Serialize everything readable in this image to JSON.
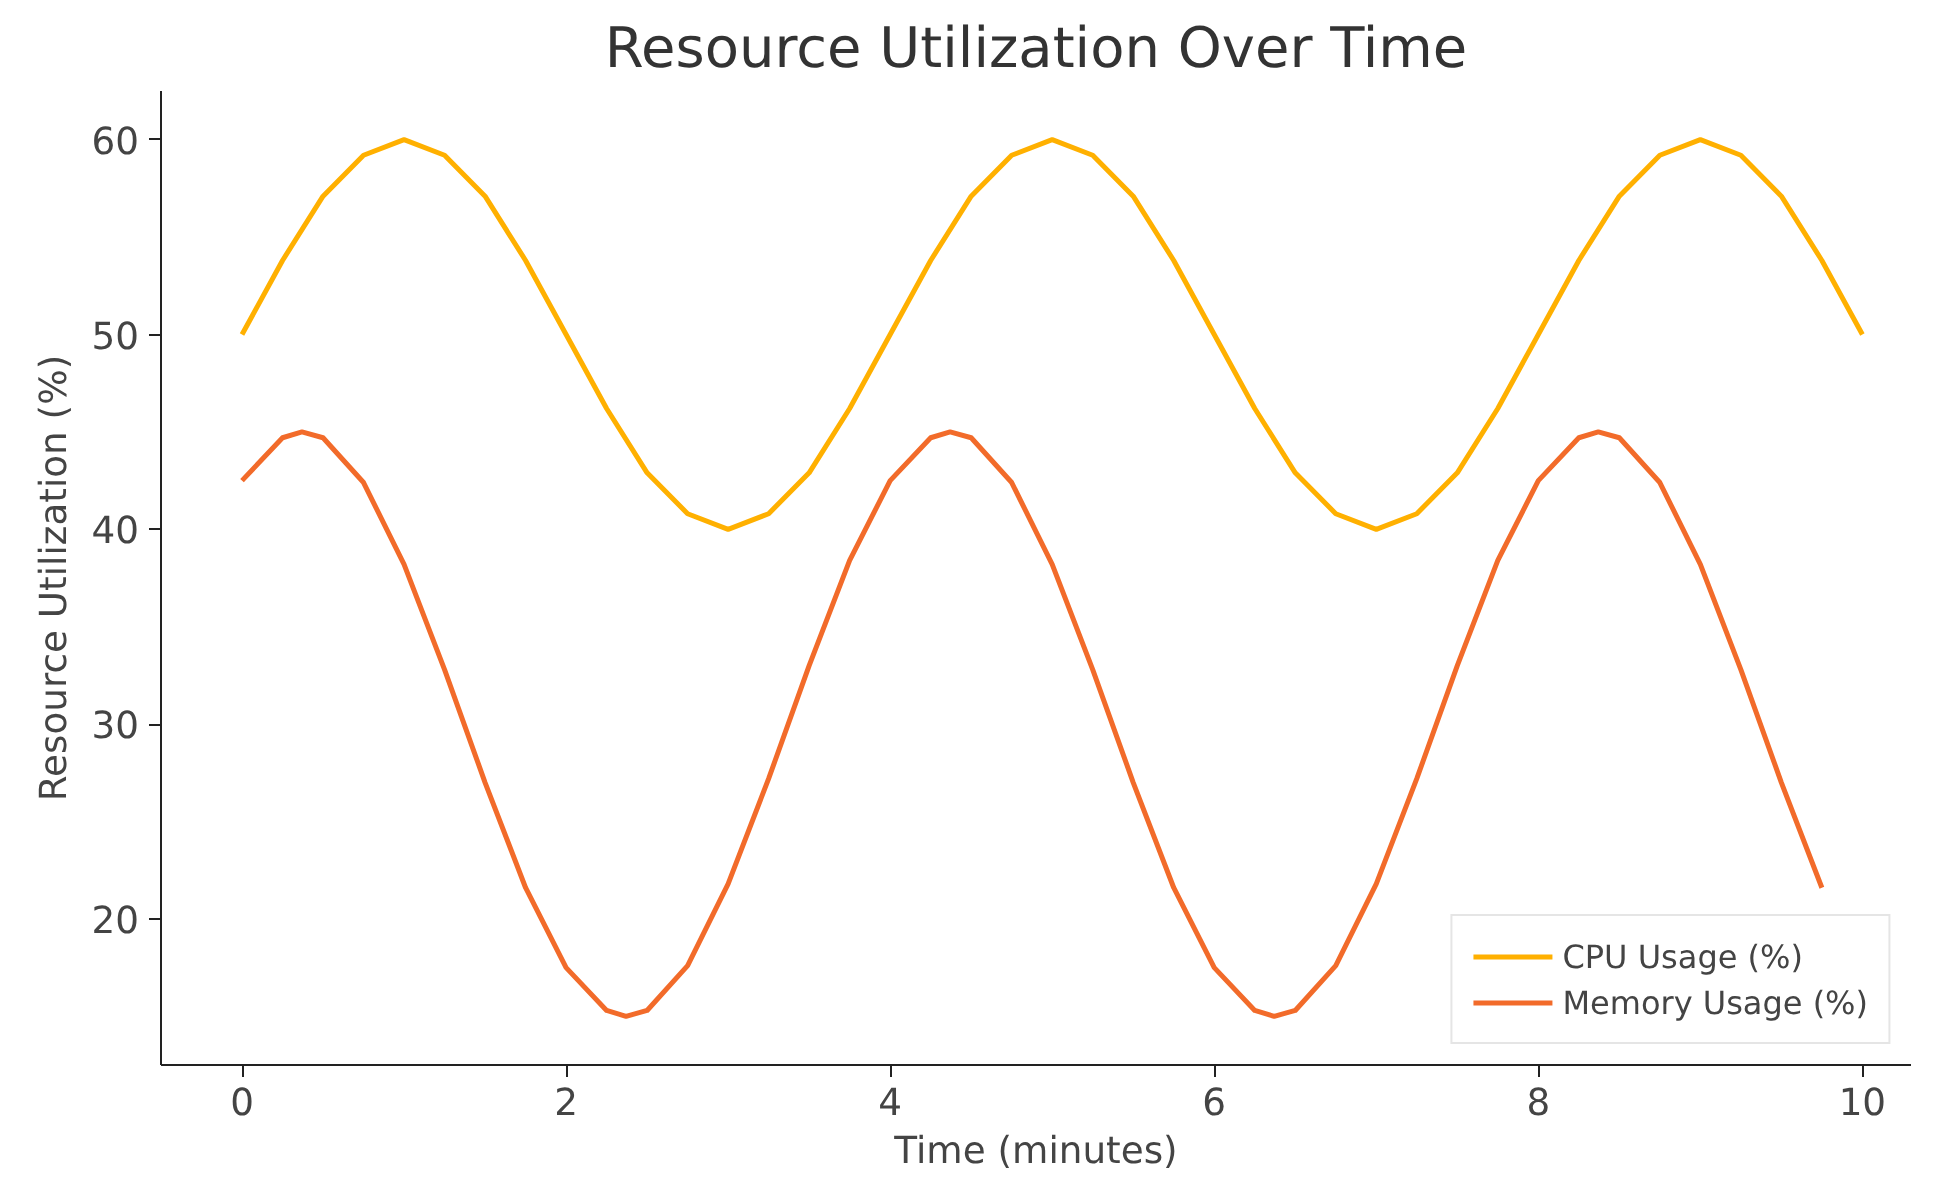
{
  "chart_data": {
    "type": "line",
    "title": "Resource Utilization Over Time",
    "xlabel": "Time (minutes)",
    "ylabel": "Resource Utilization (%)",
    "xlim": [
      -0.5,
      10.3
    ],
    "ylim": [
      12.5,
      62.5
    ],
    "xticks": [
      0,
      2,
      4,
      6,
      8,
      10
    ],
    "yticks": [
      20,
      30,
      40,
      50,
      60
    ],
    "grid": false,
    "legend": "bottom right",
    "marker": "none",
    "line_style": "solid",
    "series": [
      {
        "name": "CPU Usage (%)",
        "color": "#ffb000",
        "x": [
          0,
          0.25,
          0.5,
          0.75,
          1,
          1.25,
          1.5,
          1.75,
          2,
          2.25,
          2.5,
          2.75,
          3,
          3.25,
          3.5,
          3.75,
          4,
          4.25,
          4.5,
          4.75,
          5,
          5.25,
          5.5,
          5.75,
          6,
          6.25,
          6.5,
          6.75,
          7,
          7.25,
          7.5,
          7.75,
          8,
          8.25,
          8.5,
          8.75,
          9,
          9.25,
          9.5,
          9.75,
          10
        ],
        "values": [
          50,
          53.8,
          57.1,
          59.2,
          60,
          59.2,
          57.1,
          53.8,
          50,
          46.2,
          42.9,
          40.8,
          40,
          40.8,
          42.9,
          46.2,
          50,
          53.8,
          57.1,
          59.2,
          60,
          59.2,
          57.1,
          53.8,
          50,
          46.2,
          42.9,
          40.8,
          40,
          40.8,
          42.9,
          46.2,
          50,
          53.8,
          57.1,
          59.2,
          60,
          59.2,
          57.1,
          53.8,
          50
        ]
      },
      {
        "name": "Memory Usage (%)",
        "color": "#f26b2a",
        "x": [
          0,
          0.25,
          0.37,
          0.5,
          0.75,
          1,
          1.25,
          1.5,
          1.75,
          2,
          2.25,
          2.37,
          2.5,
          2.75,
          3,
          3.25,
          3.5,
          3.75,
          4,
          4.25,
          4.37,
          4.5,
          4.75,
          5,
          5.25,
          5.5,
          5.75,
          6,
          6.25,
          6.37,
          6.5,
          6.75,
          7,
          7.25,
          7.5,
          7.75,
          8,
          8.25,
          8.37,
          8.5,
          8.75,
          9,
          9.25,
          9.5,
          9.75
        ],
        "values": [
          42.5,
          44.7,
          45,
          44.7,
          42.4,
          38.2,
          32.8,
          27.0,
          21.6,
          17.5,
          15.3,
          15,
          15.3,
          17.6,
          21.8,
          27.2,
          33.0,
          38.4,
          42.5,
          44.7,
          45,
          44.7,
          42.4,
          38.2,
          32.8,
          27.0,
          21.6,
          17.5,
          15.3,
          15,
          15.3,
          17.6,
          21.8,
          27.2,
          33.0,
          38.4,
          42.5,
          44.7,
          45,
          44.7,
          42.4,
          38.2,
          32.8,
          27.0,
          21.6
        ]
      }
    ]
  }
}
